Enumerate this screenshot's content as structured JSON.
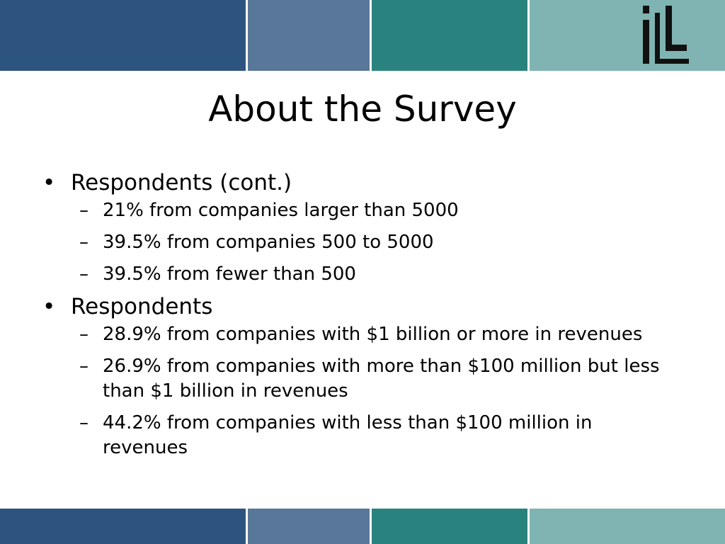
{
  "colors": {
    "band_1": "#2d547e",
    "band_2": "#587799",
    "band_3": "#2a827f",
    "band_4": "#7fb4b2",
    "logo": "#111111"
  },
  "logo": {
    "icon": "iLL-logo",
    "text": "iLL"
  },
  "title": "About the Survey",
  "bullets": [
    {
      "marker": "•",
      "text": "Respondents (cont.)",
      "sub": [
        {
          "marker": "–",
          "text": "21% from companies larger than 5000"
        },
        {
          "marker": "–",
          "text": "39.5% from companies 500 to 5000"
        },
        {
          "marker": "–",
          "text": "39.5% from fewer than 500"
        }
      ]
    },
    {
      "marker": "•",
      "text": "Respondents",
      "sub": [
        {
          "marker": "–",
          "text": "28.9% from companies with $1 billion or more in revenues"
        },
        {
          "marker": "–",
          "text": "26.9% from companies with more than $100 million but less than $1 billion in revenues"
        },
        {
          "marker": "–",
          "text": "44.2% from companies with less than $100 million in revenues"
        }
      ]
    }
  ]
}
